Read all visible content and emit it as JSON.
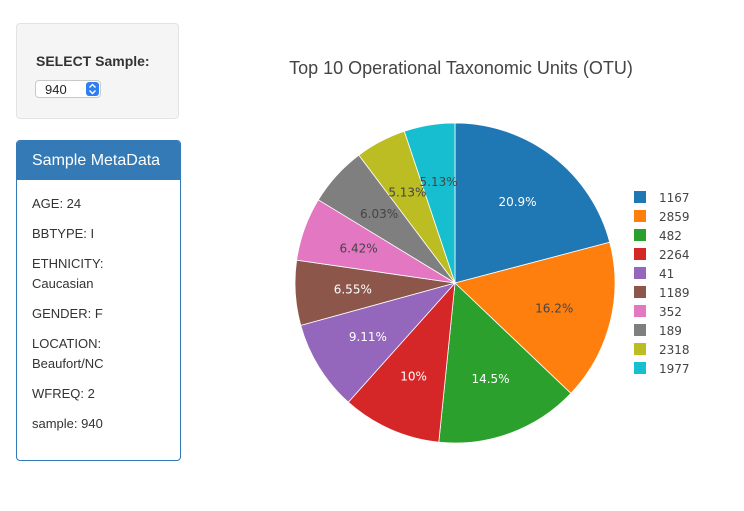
{
  "select": {
    "label": "SELECT Sample:",
    "value": "940"
  },
  "metadata": {
    "heading": "Sample MetaData",
    "lines": [
      "AGE: 24",
      "BBTYPE: I",
      "ETHNICITY: Caucasian",
      "GENDER: F",
      "LOCATION: Beaufort/NC",
      "WFREQ: 2",
      "sample: 940"
    ]
  },
  "chart_data": {
    "type": "pie",
    "title": "Top 10 Operational Taxonomic Units (OTU)",
    "labels": [
      "1167",
      "2859",
      "482",
      "2264",
      "41",
      "1189",
      "352",
      "189",
      "2318",
      "1977"
    ],
    "values": [
      20.9,
      16.2,
      14.5,
      10,
      9.11,
      6.55,
      6.42,
      6.03,
      5.13,
      5.13
    ],
    "value_labels": [
      "20.9%",
      "16.2%",
      "14.5%",
      "10%",
      "9.11%",
      "6.55%",
      "6.42%",
      "6.03%",
      "5.13%",
      "5.13%"
    ],
    "colors": [
      "#1f77b4",
      "#ff7f0e",
      "#2ca02c",
      "#d62728",
      "#9467bd",
      "#8c564b",
      "#e377c2",
      "#7f7f7f",
      "#bcbd22",
      "#17becf"
    ],
    "direction": "counterclockwise",
    "legend_position": "right"
  }
}
